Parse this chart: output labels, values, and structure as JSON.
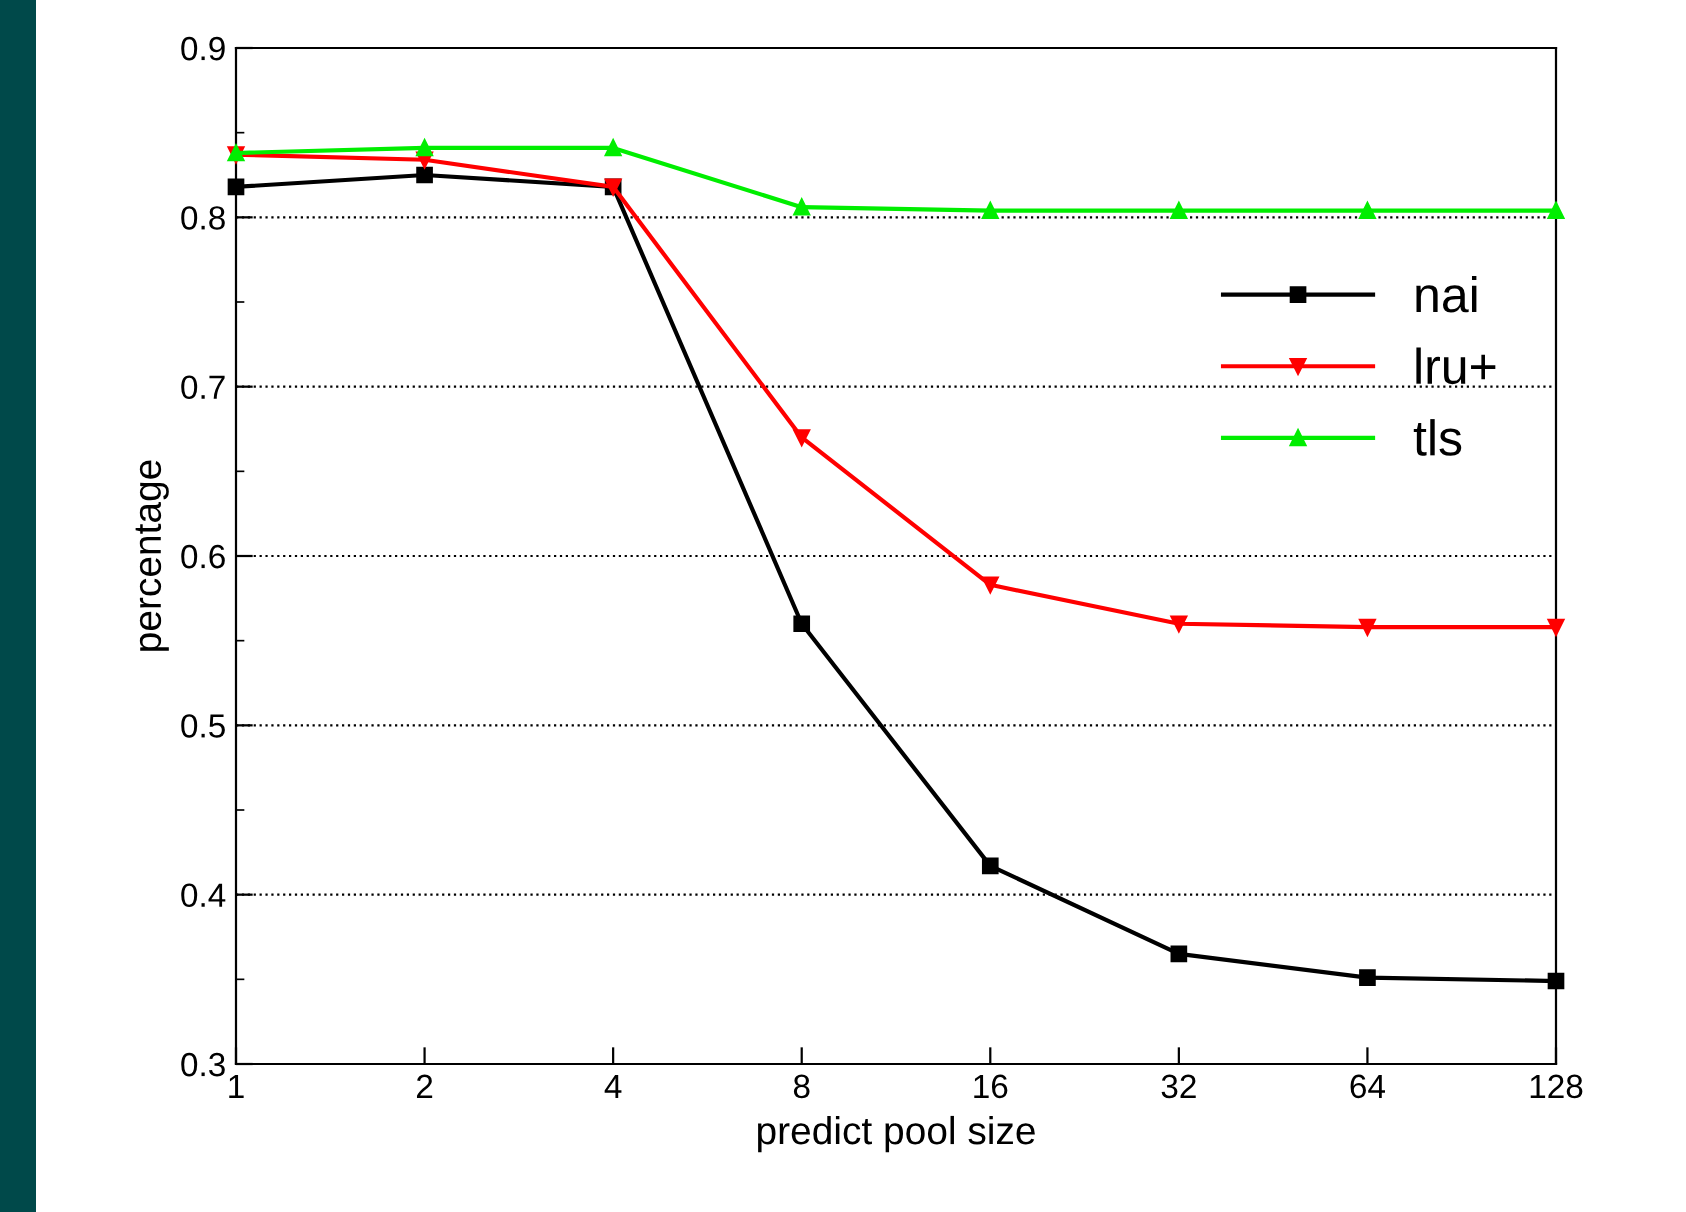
{
  "chart_data": {
    "type": "line",
    "xlabel": "predict pool size",
    "ylabel": "percentage",
    "categories": [
      "1",
      "2",
      "4",
      "8",
      "16",
      "32",
      "64",
      "128"
    ],
    "series": [
      {
        "name": "nai",
        "color": "#000000",
        "marker": "square",
        "values": [
          0.818,
          0.825,
          0.818,
          0.56,
          0.417,
          0.365,
          0.351,
          0.349
        ]
      },
      {
        "name": "lru+",
        "color": "#ff0000",
        "marker": "triangle_down",
        "values": [
          0.837,
          0.834,
          0.818,
          0.67,
          0.583,
          0.56,
          0.558,
          0.558
        ]
      },
      {
        "name": "tls",
        "color": "#00ee00",
        "marker": "triangle",
        "values": [
          0.838,
          0.841,
          0.841,
          0.806,
          0.804,
          0.804,
          0.804,
          0.804
        ]
      }
    ],
    "ylim": [
      0.3,
      0.9
    ],
    "yticks": [
      0.3,
      0.4,
      0.5,
      0.6,
      0.7,
      0.8,
      0.9
    ],
    "grid": "y",
    "legend": "top right",
    "line_style": "solid"
  }
}
